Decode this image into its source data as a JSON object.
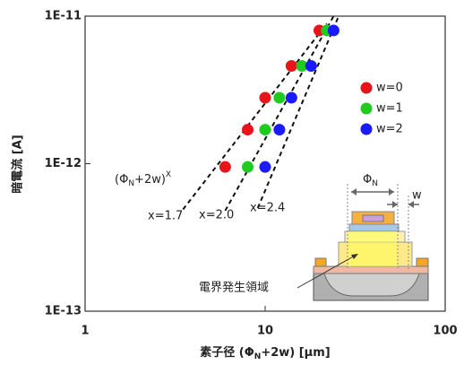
{
  "chart_data": {
    "type": "scatter",
    "x_label": [
      "素子径 (Φ",
      "N",
      "+2w) [μm]"
    ],
    "y_label": "暗電流 [A]",
    "xlim": [
      1,
      100
    ],
    "xticks": [
      1,
      10,
      100
    ],
    "ylim": [
      1e-13,
      1e-11
    ],
    "yticks": [
      {
        "value": 1e-13,
        "label": "1E-13"
      },
      {
        "value": 1e-12,
        "label": "1E-12"
      },
      {
        "value": 1e-11,
        "label": "1E-11"
      }
    ],
    "log_x": true,
    "log_y": true,
    "legend": "right",
    "series": [
      {
        "name": "w=0",
        "color": "#e8141a",
        "x": [
          6,
          8,
          10,
          14,
          20
        ],
        "values": [
          9.5e-13,
          1.7e-12,
          2.8e-12,
          4.6e-12,
          8e-12
        ]
      },
      {
        "name": "w=1",
        "color": "#1ecb1e",
        "x": [
          8,
          10,
          12,
          16,
          22
        ],
        "values": [
          9.5e-13,
          1.7e-12,
          2.8e-12,
          4.6e-12,
          8e-12
        ]
      },
      {
        "name": "w=2",
        "color": "#1a1aff",
        "x": [
          10,
          12,
          14,
          18,
          24
        ],
        "values": [
          9.5e-13,
          1.7e-12,
          2.8e-12,
          4.6e-12,
          8e-12
        ]
      }
    ],
    "fit_lines": [
      {
        "label": "x=1.7",
        "x": [
          3.5,
          22
        ],
        "values": [
          4.9e-13,
          8.9e-12
        ]
      },
      {
        "label": "x=2.0",
        "x": [
          6,
          24
        ],
        "values": [
          4.8e-13,
          1e-11
        ]
      },
      {
        "label": "x=2.4",
        "x": [
          9.1,
          25.6
        ],
        "values": [
          5e-13,
          1e-11
        ]
      }
    ],
    "annotation": [
      "(Φ",
      "N",
      "+2w)",
      "X"
    ],
    "inset": {
      "phi": [
        "Φ",
        "N"
      ],
      "w": "w",
      "region": "電界発生領域"
    }
  }
}
